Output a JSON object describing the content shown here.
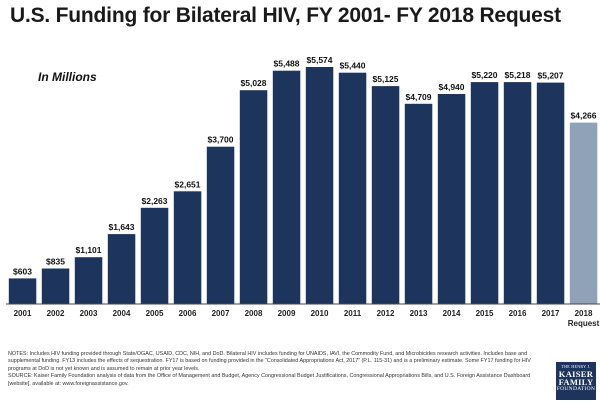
{
  "chart_data": {
    "type": "bar",
    "title": "U.S. Funding for Bilateral HIV, FY 2001- FY 2018 Request",
    "subtitle": "In Millions",
    "categories": [
      "2001",
      "2002",
      "2003",
      "2004",
      "2005",
      "2006",
      "2007",
      "2008",
      "2009",
      "2010",
      "2011",
      "2012",
      "2013",
      "2014",
      "2015",
      "2016",
      "2017",
      "2018"
    ],
    "category_sublabels": [
      "",
      "",
      "",
      "",
      "",
      "",
      "",
      "",
      "",
      "",
      "",
      "",
      "",
      "",
      "",
      "",
      "",
      "Request"
    ],
    "values": [
      603,
      835,
      1101,
      1643,
      2263,
      2651,
      3700,
      5028,
      5488,
      5574,
      5440,
      5125,
      4709,
      4940,
      5220,
      5218,
      5207,
      4266
    ],
    "value_labels": [
      "$603",
      "$835",
      "$1,101",
      "$1,643",
      "$2,263",
      "$2,651",
      "$3,700",
      "$5,028",
      "$5,488",
      "$5,574",
      "$5,440",
      "$5,125",
      "$4,709",
      "$4,940",
      "$5,220",
      "$5,218",
      "$5,207",
      "$4,266"
    ],
    "highlight_index": 17,
    "xlabel": "",
    "ylabel": "",
    "ylim": [
      0,
      5574
    ],
    "grid": false,
    "colors": {
      "bar": "#1d355d",
      "request_bar": "#8fa2b8",
      "axis": "#444444"
    }
  },
  "notes": {
    "line1": "NOTES: Includes HIV funding provided through State/OGAC, USAID, CDC, NIH, and DoD. Bilateral HIV includes funding for UNAIDS, IAVI, the Commodity Fund, and Microbicides research activities. Includes base and supplemental funding. FY13 includes the effects of sequestration. FY17 is based on funding provided in the “Consolidated Appropriations Act, 2017” (P.L. 115-31) and is a preliminary estimate. Some FY17 funding for HIV programs at DoD is not yet known and is assumed to remain at prior year levels.",
    "line2": "SOURCE: Kaiser Family Foundation analysis of data from the Office of Management and Budget, Agency Congressional Budget Justifications, Congressional Appropriations Bills, and U.S. Foreign Assistance Dashboard [website], available at: www.foreignassistance.gov."
  },
  "logo": {
    "line1": "THE HENRY J.",
    "line2": "KAISER",
    "line3": "FAMILY",
    "line4": "FOUNDATION"
  }
}
